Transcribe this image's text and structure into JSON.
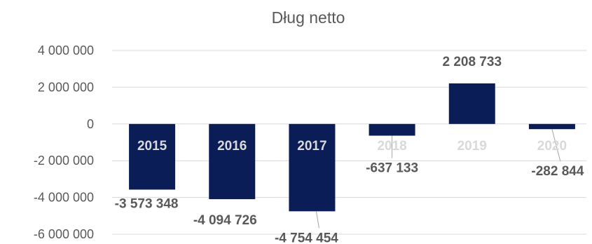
{
  "chart_data": {
    "type": "bar",
    "title": "Dług netto",
    "categories": [
      "2015",
      "2016",
      "2017",
      "2018",
      "2019",
      "2020"
    ],
    "values": [
      -3573348,
      -4094726,
      -4754454,
      -637133,
      2208733,
      -282844
    ],
    "value_labels": [
      "-3 573 348",
      "-4 094 726",
      "-4 754 454",
      "-637 133",
      "2 208 733",
      "-282 844"
    ],
    "yticks": [
      4000000,
      2000000,
      0,
      -2000000,
      -4000000,
      -6000000
    ],
    "ytick_labels": [
      "4 000 000",
      "2 000 000",
      "0",
      "-2 000 000",
      "-4 000 000",
      "-6 000 000"
    ],
    "ylim": [
      -6000000,
      4000000
    ],
    "grid": true,
    "legend": "none",
    "colors": {
      "bar": "#0a1d57",
      "category_label_on_bar": "#d9d9d9",
      "category_label_off_bar": "#d9d9d9"
    }
  }
}
